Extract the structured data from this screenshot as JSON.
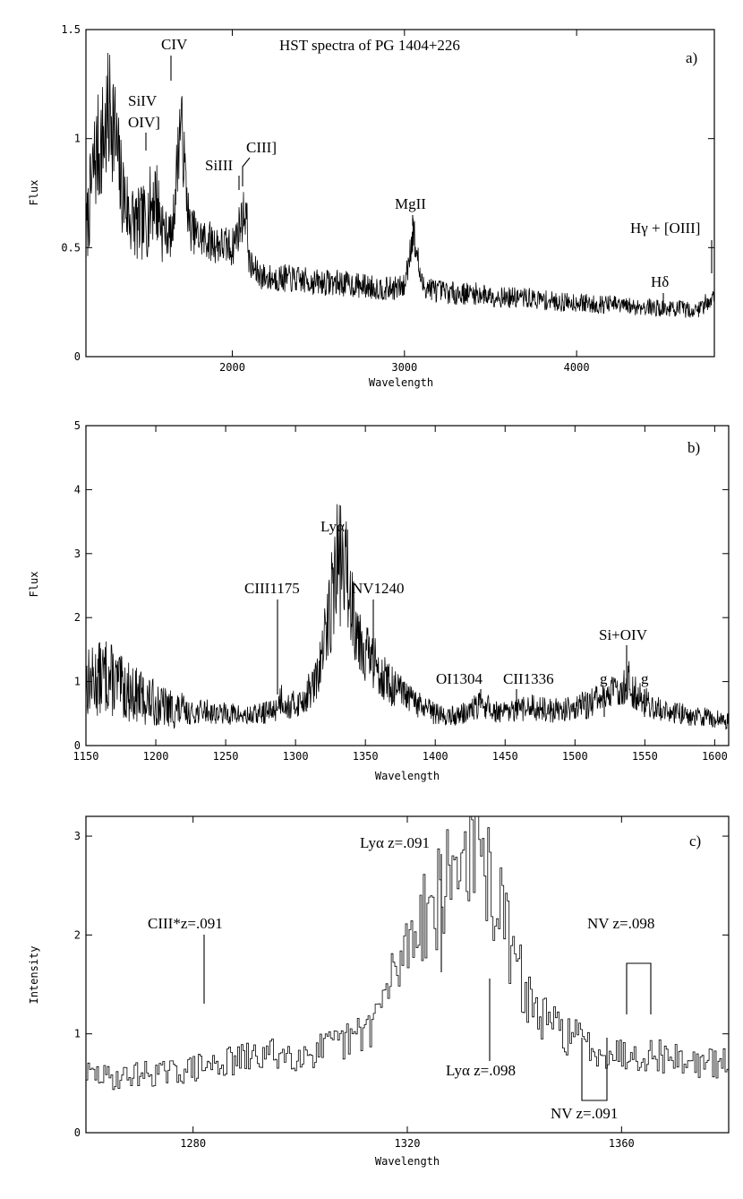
{
  "chart_data": [
    {
      "id": "a",
      "type": "line",
      "title": "HST spectra of PG 1404+226",
      "panel_label": "a)",
      "xlabel": "Wavelength",
      "ylabel": "Flux",
      "xlim": [
        1150,
        4800
      ],
      "ylim": [
        0,
        1.5
      ],
      "x_ticks": [
        2000,
        3000,
        4000
      ],
      "x_tick_labels": [
        "2000",
        "3000",
        "4000"
      ],
      "y_ticks": [
        0,
        0.5,
        1,
        1.5
      ],
      "y_tick_labels": [
        "0",
        "0.5",
        "1",
        "1.5"
      ],
      "grid": false,
      "series": [
        {
          "x": [
            1150,
            1200,
            1250,
            1300,
            1350,
            1400,
            1450,
            1500,
            1550,
            1600,
            1650,
            1700,
            1750,
            1800,
            1900,
            2000,
            2050,
            2080,
            2100,
            2150,
            2200,
            2300,
            2400,
            2500,
            2600,
            2700,
            2800,
            2900,
            3000,
            3050,
            3100,
            3200,
            3300,
            3400,
            3500,
            3600,
            3700,
            3800,
            3900,
            4000,
            4100,
            4200,
            4300,
            4400,
            4500,
            4600,
            4700,
            4780
          ],
          "y": [
            0.55,
            0.9,
            1.0,
            1.15,
            0.8,
            0.65,
            0.6,
            0.62,
            0.75,
            0.58,
            0.55,
            1.1,
            0.6,
            0.55,
            0.52,
            0.5,
            0.62,
            0.68,
            0.42,
            0.38,
            0.36,
            0.36,
            0.35,
            0.34,
            0.34,
            0.33,
            0.32,
            0.31,
            0.32,
            0.58,
            0.33,
            0.3,
            0.29,
            0.29,
            0.28,
            0.27,
            0.27,
            0.26,
            0.25,
            0.25,
            0.24,
            0.24,
            0.23,
            0.23,
            0.22,
            0.22,
            0.21,
            0.27
          ]
        }
      ],
      "annotations": [
        {
          "label": "SiIV",
          "x": 1400
        },
        {
          "label": "OIV]",
          "x": 1402
        },
        {
          "label": "CIV",
          "x": 1549
        },
        {
          "label": "SiIII",
          "x": 1892
        },
        {
          "label": "CIII]",
          "x": 1909
        },
        {
          "label": "MgII",
          "x": 2798
        },
        {
          "label": "Hδ",
          "x": 4102
        },
        {
          "label": "Hγ + [OIII]",
          "x": 4363
        }
      ]
    },
    {
      "id": "b",
      "type": "line",
      "panel_label": "b)",
      "xlabel": "Wavelength",
      "ylabel": "Flux",
      "xlim": [
        1150,
        1610
      ],
      "ylim": [
        0,
        5
      ],
      "x_ticks": [
        1150,
        1200,
        1250,
        1300,
        1350,
        1400,
        1450,
        1500,
        1550,
        1600
      ],
      "x_tick_labels": [
        "1150",
        "1200",
        "1250",
        "1300",
        "1350",
        "1400",
        "1450",
        "1500",
        "1550",
        "1600"
      ],
      "y_ticks": [
        0,
        1,
        2,
        3,
        4,
        5
      ],
      "y_tick_labels": [
        "0",
        "1",
        "2",
        "3",
        "4",
        "5"
      ],
      "grid": false,
      "series": [
        {
          "x": [
            1155,
            1165,
            1175,
            1185,
            1195,
            1205,
            1215,
            1225,
            1235,
            1245,
            1255,
            1265,
            1275,
            1285,
            1290,
            1295,
            1305,
            1315,
            1320,
            1325,
            1330,
            1335,
            1340,
            1345,
            1350,
            1355,
            1360,
            1365,
            1370,
            1380,
            1390,
            1400,
            1410,
            1420,
            1430,
            1435,
            1440,
            1450,
            1460,
            1470,
            1480,
            1490,
            1500,
            1510,
            1520,
            1530,
            1538,
            1545,
            1555,
            1565,
            1575,
            1585,
            1595,
            1605
          ],
          "y": [
            1.0,
            1.1,
            0.9,
            0.8,
            0.7,
            0.6,
            0.55,
            0.5,
            0.55,
            0.5,
            0.5,
            0.45,
            0.5,
            0.55,
            0.75,
            0.6,
            0.7,
            1.0,
            1.5,
            2.2,
            2.9,
            2.8,
            2.3,
            1.8,
            1.5,
            1.3,
            1.2,
            1.0,
            0.9,
            0.75,
            0.6,
            0.5,
            0.45,
            0.5,
            0.6,
            0.65,
            0.55,
            0.5,
            0.55,
            0.6,
            0.55,
            0.55,
            0.6,
            0.65,
            0.75,
            0.85,
            1.0,
            0.8,
            0.6,
            0.55,
            0.5,
            0.45,
            0.45,
            0.4
          ]
        }
      ],
      "annotations": [
        {
          "label": "Lyα",
          "x": 1330
        },
        {
          "label": "CIII1175",
          "x": 1288
        },
        {
          "label": "NV1240",
          "x": 1357
        },
        {
          "label": "OI1304",
          "x": 1434
        },
        {
          "label": "CII1336",
          "x": 1460
        },
        {
          "label": "g",
          "x": 1522
        },
        {
          "label": "Si+OIV",
          "x": 1538
        },
        {
          "label": "g",
          "x": 1552
        }
      ]
    },
    {
      "id": "c",
      "type": "line",
      "panel_label": "c)",
      "xlabel": "Wavelength",
      "ylabel": "Intensity",
      "xlim": [
        1260,
        1380
      ],
      "ylim": [
        0,
        3.2
      ],
      "x_ticks": [
        1280,
        1320,
        1360
      ],
      "x_tick_labels": [
        "1280",
        "1320",
        "1360"
      ],
      "y_ticks": [
        0,
        1,
        2,
        3
      ],
      "y_tick_labels": [
        "0",
        "1",
        "2",
        "3"
      ],
      "grid": false,
      "series": [
        {
          "x": [
            1260,
            1265,
            1270,
            1275,
            1280,
            1285,
            1290,
            1295,
            1300,
            1305,
            1310,
            1313,
            1316,
            1319,
            1322,
            1325,
            1328,
            1331,
            1334,
            1337,
            1340,
            1343,
            1346,
            1350,
            1355,
            1360,
            1365,
            1370,
            1375,
            1380
          ],
          "y": [
            0.6,
            0.55,
            0.6,
            0.6,
            0.65,
            0.7,
            0.75,
            0.8,
            0.8,
            0.85,
            0.95,
            1.1,
            1.4,
            1.8,
            2.2,
            2.3,
            2.6,
            2.9,
            2.7,
            2.3,
            1.7,
            1.3,
            1.1,
            1.0,
            0.85,
            0.8,
            0.8,
            0.75,
            0.7,
            0.7
          ]
        }
      ],
      "annotations": [
        {
          "label": "CIII*z=.091",
          "x": 1282
        },
        {
          "label": "Lyα z=.091",
          "x": 1327
        },
        {
          "label": "Lyα z=.098",
          "x": 1335
        },
        {
          "label": "NV z=.098",
          "x": 1361
        },
        {
          "label": "NV z=.091",
          "x": 1353
        }
      ]
    }
  ]
}
